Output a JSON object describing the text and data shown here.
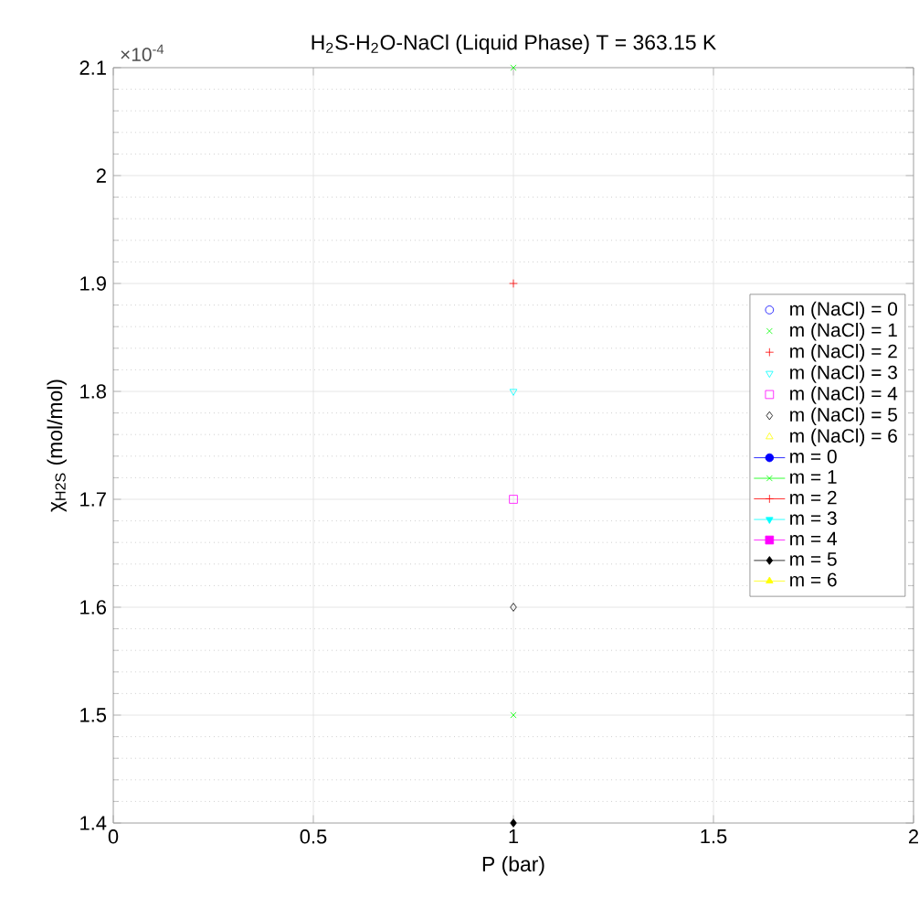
{
  "chart_data": {
    "type": "scatter",
    "title": "H$_{2}$S-H$_{2}$O-NaCl (Liquid Phase)    T = 363.15 K",
    "xlabel": "P (bar)",
    "ylabel": "χ$_{H2S}$ (mol/mol)",
    "annotations": [
      "×10$^{-4}$"
    ],
    "xlim": [
      0,
      2
    ],
    "ylim": [
      1.4,
      2.1
    ],
    "xticks": [
      0,
      0.5,
      1,
      1.5,
      2
    ],
    "yticks": [
      1.4,
      1.5,
      1.6,
      1.7,
      1.8,
      1.9,
      2,
      2.1
    ],
    "grid": true,
    "legend": "right",
    "x": [
      1
    ],
    "series": [
      {
        "name": "m (NaCl) = 0",
        "color": "#0000ff",
        "marker": "circle",
        "values": [
          null
        ]
      },
      {
        "name": "m (NaCl) = 1",
        "color": "#00ff00",
        "marker": "cross",
        "values": [
          2.1
        ]
      },
      {
        "name": "m (NaCl) = 2",
        "color": "#ff0000",
        "marker": "plus",
        "values": [
          1.9
        ]
      },
      {
        "name": "m (NaCl) = 3",
        "color": "#00ffff",
        "marker": "triangle_down",
        "values": [
          1.8
        ]
      },
      {
        "name": "m (NaCl) = 4",
        "color": "#ff00ff",
        "marker": "square",
        "values": [
          1.7
        ]
      },
      {
        "name": "m (NaCl) = 5",
        "color": "#000000",
        "marker": "diamond",
        "values": [
          1.6
        ]
      },
      {
        "name": "m (NaCl) = 6",
        "color": "#ffff00",
        "marker": "triangle",
        "values": [
          null
        ]
      },
      {
        "type": "line",
        "name": "m = 0",
        "color": "#0000ff",
        "marker": "circle",
        "line_style": "solid",
        "values": [
          null
        ]
      },
      {
        "type": "line",
        "name": "m = 1",
        "color": "#00ff00",
        "marker": "cross",
        "line_style": "solid",
        "values": [
          1.5
        ]
      },
      {
        "type": "line",
        "name": "m = 2",
        "color": "#ff0000",
        "marker": "plus",
        "line_style": "solid",
        "values": [
          null
        ]
      },
      {
        "type": "line",
        "name": "m = 3",
        "color": "#00ffff",
        "marker": "triangle_down",
        "line_style": "solid",
        "values": [
          null
        ]
      },
      {
        "type": "line",
        "name": "m = 4",
        "color": "#ff00ff",
        "marker": "square",
        "line_style": "solid",
        "values": [
          null
        ]
      },
      {
        "type": "line",
        "name": "m = 5",
        "color": "#000000",
        "marker": "diamond",
        "line_style": "solid",
        "values": [
          1.4
        ]
      },
      {
        "type": "line",
        "name": "m = 6",
        "color": "#ffff00",
        "marker": "triangle",
        "line_style": "solid",
        "values": [
          null
        ]
      }
    ]
  }
}
